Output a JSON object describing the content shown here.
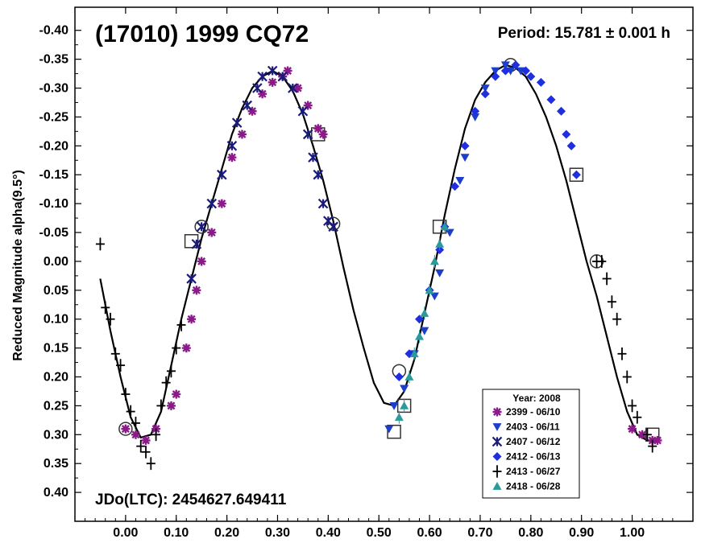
{
  "chart_data": {
    "type": "scatter",
    "title": "(17010) 1999 CQ72",
    "period_label": "Period: 15.781 ± 0.001 h",
    "epoch_label": "JDo(LTC): 2454627.649411",
    "xlabel": "",
    "ylabel": "Reduced Magnitude alpha(9.5°)",
    "xlim": [
      -0.1,
      1.12
    ],
    "ylim": [
      0.45,
      -0.44
    ],
    "y_inverted": true,
    "grid": false,
    "x_ticks": [
      0.0,
      0.1,
      0.2,
      0.3,
      0.4,
      0.5,
      0.6,
      0.7,
      0.8,
      0.9,
      1.0
    ],
    "x_tick_labels": [
      "0.00",
      "0.10",
      "0.20",
      "0.30",
      "0.40",
      "0.50",
      "0.60",
      "0.70",
      "0.80",
      "0.90",
      "1.00"
    ],
    "y_ticks": [
      -0.4,
      -0.35,
      -0.3,
      -0.25,
      -0.2,
      -0.15,
      -0.1,
      -0.05,
      0.0,
      0.05,
      0.1,
      0.15,
      0.2,
      0.25,
      0.3,
      0.35,
      0.4
    ],
    "y_tick_labels": [
      "-0.40",
      "-0.35",
      "-0.30",
      "-0.25",
      "-0.20",
      "-0.15",
      "-0.10",
      "-0.05",
      "0.00",
      "0.05",
      "0.10",
      "0.15",
      "0.20",
      "0.25",
      "0.30",
      "0.35",
      "0.40"
    ],
    "legend": {
      "title": "Year: 2008",
      "placement": "bottom-right",
      "entries": [
        {
          "label": "2399 - 06/10",
          "marker": "asterisk",
          "color": "#8b1a89"
        },
        {
          "label": "2403 - 06/11",
          "marker": "triangle-down",
          "color": "#1c3ec9"
        },
        {
          "label": "2407 - 06/12",
          "marker": "star",
          "color": "#1a1a7a"
        },
        {
          "label": "2412 - 06/13",
          "marker": "diamond",
          "color": "#1f2fe0"
        },
        {
          "label": "2413 - 06/27",
          "marker": "plus",
          "color": "#000000"
        },
        {
          "label": "2418 - 06/28",
          "marker": "triangle-up",
          "color": "#2a9a9a"
        }
      ]
    },
    "fit_curve": {
      "x": [
        -0.05,
        -0.03,
        -0.01,
        0.01,
        0.03,
        0.05,
        0.07,
        0.09,
        0.11,
        0.13,
        0.15,
        0.17,
        0.19,
        0.21,
        0.23,
        0.25,
        0.27,
        0.29,
        0.31,
        0.33,
        0.35,
        0.37,
        0.39,
        0.41,
        0.43,
        0.45,
        0.47,
        0.49,
        0.51,
        0.53,
        0.55,
        0.57,
        0.59,
        0.61,
        0.63,
        0.65,
        0.67,
        0.69,
        0.71,
        0.73,
        0.75,
        0.77,
        0.79,
        0.81,
        0.83,
        0.85,
        0.87,
        0.89,
        0.91,
        0.93,
        0.95,
        0.97,
        0.99,
        1.01,
        1.03,
        1.05
      ],
      "y": [
        0.03,
        0.12,
        0.2,
        0.27,
        0.305,
        0.3,
        0.26,
        0.18,
        0.1,
        0.03,
        -0.04,
        -0.1,
        -0.16,
        -0.22,
        -0.265,
        -0.3,
        -0.32,
        -0.33,
        -0.32,
        -0.295,
        -0.255,
        -0.2,
        -0.14,
        -0.07,
        0.01,
        0.085,
        0.15,
        0.21,
        0.245,
        0.25,
        0.225,
        0.17,
        0.09,
        0.01,
        -0.08,
        -0.16,
        -0.23,
        -0.28,
        -0.31,
        -0.33,
        -0.34,
        -0.335,
        -0.32,
        -0.29,
        -0.25,
        -0.2,
        -0.14,
        -0.07,
        0.0,
        0.06,
        0.13,
        0.2,
        0.26,
        0.3,
        0.31,
        0.31
      ]
    },
    "series": [
      {
        "name": "2399 - 06/10",
        "points": [
          [
            0.0,
            0.29
          ],
          [
            0.02,
            0.3
          ],
          [
            0.04,
            0.31
          ],
          [
            0.06,
            0.29
          ],
          [
            0.09,
            0.25
          ],
          [
            0.1,
            0.23
          ],
          [
            0.12,
            0.15
          ],
          [
            0.13,
            0.1
          ],
          [
            0.14,
            0.05
          ],
          [
            0.15,
            0.0
          ],
          [
            0.17,
            -0.05
          ],
          [
            0.19,
            -0.1
          ],
          [
            0.21,
            -0.18
          ],
          [
            0.23,
            -0.22
          ],
          [
            0.25,
            -0.26
          ],
          [
            0.27,
            -0.29
          ],
          [
            0.29,
            -0.31
          ],
          [
            0.31,
            -0.32
          ],
          [
            0.32,
            -0.33
          ],
          [
            0.34,
            -0.3
          ],
          [
            0.36,
            -0.27
          ],
          [
            0.38,
            -0.23
          ],
          [
            0.39,
            -0.22
          ],
          [
            1.0,
            0.29
          ],
          [
            1.02,
            0.3
          ],
          [
            1.04,
            0.31
          ],
          [
            1.05,
            0.31
          ]
        ]
      },
      {
        "name": "2403 - 06/11",
        "points": [
          [
            0.53,
            0.25
          ],
          [
            0.52,
            0.29
          ],
          [
            0.55,
            0.22
          ],
          [
            0.57,
            0.16
          ],
          [
            0.59,
            0.12
          ],
          [
            0.61,
            0.06
          ],
          [
            0.62,
            0.02
          ],
          [
            0.64,
            -0.05
          ],
          [
            0.66,
            -0.14
          ],
          [
            0.67,
            -0.18
          ],
          [
            0.69,
            -0.25
          ],
          [
            0.71,
            -0.3
          ],
          [
            0.73,
            -0.33
          ],
          [
            0.75,
            -0.34
          ],
          [
            0.76,
            -0.33
          ],
          [
            0.78,
            -0.33
          ]
        ]
      },
      {
        "name": "2407 - 06/12",
        "points": [
          [
            0.13,
            0.03
          ],
          [
            0.14,
            -0.03
          ],
          [
            0.15,
            -0.06
          ],
          [
            0.17,
            -0.1
          ],
          [
            0.19,
            -0.15
          ],
          [
            0.21,
            -0.2
          ],
          [
            0.22,
            -0.24
          ],
          [
            0.24,
            -0.27
          ],
          [
            0.26,
            -0.3
          ],
          [
            0.27,
            -0.32
          ],
          [
            0.29,
            -0.33
          ],
          [
            0.31,
            -0.32
          ],
          [
            0.33,
            -0.3
          ],
          [
            0.35,
            -0.26
          ],
          [
            0.36,
            -0.22
          ],
          [
            0.37,
            -0.18
          ],
          [
            0.38,
            -0.15
          ],
          [
            0.39,
            -0.1
          ],
          [
            0.4,
            -0.07
          ],
          [
            0.41,
            -0.06
          ]
        ]
      },
      {
        "name": "2412 - 06/13",
        "points": [
          [
            0.54,
            0.2
          ],
          [
            0.56,
            0.16
          ],
          [
            0.58,
            0.1
          ],
          [
            0.6,
            0.05
          ],
          [
            0.62,
            -0.02
          ],
          [
            0.63,
            -0.06
          ],
          [
            0.65,
            -0.13
          ],
          [
            0.67,
            -0.2
          ],
          [
            0.69,
            -0.26
          ],
          [
            0.71,
            -0.29
          ],
          [
            0.73,
            -0.32
          ],
          [
            0.75,
            -0.33
          ],
          [
            0.77,
            -0.34
          ],
          [
            0.79,
            -0.33
          ],
          [
            0.8,
            -0.32
          ],
          [
            0.82,
            -0.31
          ],
          [
            0.84,
            -0.28
          ],
          [
            0.86,
            -0.26
          ],
          [
            0.87,
            -0.22
          ],
          [
            0.88,
            -0.2
          ],
          [
            0.89,
            -0.15
          ]
        ]
      },
      {
        "name": "2413 - 06/27",
        "points": [
          [
            -0.05,
            -0.03
          ],
          [
            -0.04,
            0.08
          ],
          [
            -0.03,
            0.1
          ],
          [
            -0.02,
            0.16
          ],
          [
            -0.01,
            0.18
          ],
          [
            0.0,
            0.23
          ],
          [
            0.01,
            0.26
          ],
          [
            0.02,
            0.28
          ],
          [
            0.03,
            0.32
          ],
          [
            0.04,
            0.33
          ],
          [
            0.05,
            0.35
          ],
          [
            0.06,
            0.3
          ],
          [
            0.07,
            0.25
          ],
          [
            0.08,
            0.21
          ],
          [
            0.09,
            0.19
          ],
          [
            0.1,
            0.15
          ],
          [
            0.11,
            0.11
          ],
          [
            0.93,
            0.0
          ],
          [
            0.94,
            0.0
          ],
          [
            0.95,
            0.03
          ],
          [
            0.96,
            0.07
          ],
          [
            0.97,
            0.1
          ],
          [
            0.98,
            0.16
          ],
          [
            0.99,
            0.2
          ],
          [
            1.0,
            0.25
          ],
          [
            1.01,
            0.27
          ],
          [
            1.03,
            0.3
          ],
          [
            1.04,
            0.32
          ]
        ]
      },
      {
        "name": "2418 - 06/28",
        "points": [
          [
            0.54,
            0.27
          ],
          [
            0.55,
            0.25
          ],
          [
            0.56,
            0.2
          ],
          [
            0.57,
            0.16
          ],
          [
            0.58,
            0.13
          ],
          [
            0.59,
            0.09
          ],
          [
            0.6,
            0.05
          ],
          [
            0.61,
            0.0
          ],
          [
            0.62,
            -0.03
          ],
          [
            0.63,
            -0.06
          ]
        ]
      }
    ],
    "highlighted_points": [
      [
        0.13,
        -0.035
      ],
      [
        0.15,
        -0.06
      ],
      [
        0.38,
        -0.22
      ],
      [
        0.41,
        -0.065
      ],
      [
        0.62,
        -0.06
      ],
      [
        0.76,
        -0.34
      ],
      [
        0.89,
        -0.15
      ],
      [
        0.93,
        0.0
      ],
      [
        0.53,
        0.295
      ],
      [
        0.54,
        0.19
      ],
      [
        0.55,
        0.25
      ],
      [
        0.0,
        0.29
      ],
      [
        1.04,
        0.3
      ]
    ]
  }
}
